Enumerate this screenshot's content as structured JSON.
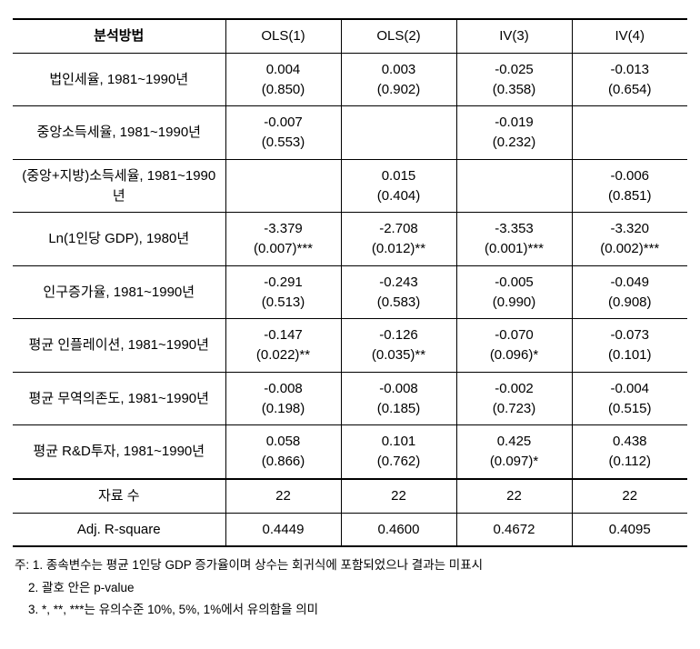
{
  "table": {
    "header": {
      "label": "분석방법",
      "cols": [
        "OLS(1)",
        "OLS(2)",
        "IV(3)",
        "IV(4)"
      ]
    },
    "rows": [
      {
        "label": "법인세율, 1981~1990년",
        "cells": [
          "0.004\n(0.850)",
          "0.003\n(0.902)",
          "-0.025\n(0.358)",
          "-0.013\n(0.654)"
        ]
      },
      {
        "label": "중앙소득세율, 1981~1990년",
        "cells": [
          "-0.007\n(0.553)",
          "",
          "-0.019\n(0.232)",
          ""
        ]
      },
      {
        "label": "(중앙+지방)소득세율, 1981~1990년",
        "cells": [
          "",
          "0.015\n(0.404)",
          "",
          "-0.006\n(0.851)"
        ]
      },
      {
        "label": "Ln(1인당 GDP), 1980년",
        "cells": [
          "-3.379\n(0.007)***",
          "-2.708\n(0.012)**",
          "-3.353\n(0.001)***",
          "-3.320\n(0.002)***"
        ]
      },
      {
        "label": "인구증가율, 1981~1990년",
        "cells": [
          "-0.291\n(0.513)",
          "-0.243\n(0.583)",
          "-0.005\n(0.990)",
          "-0.049\n(0.908)"
        ]
      },
      {
        "label": "평균 인플레이션, 1981~1990년",
        "cells": [
          "-0.147\n(0.022)**",
          "-0.126\n(0.035)**",
          "-0.070\n(0.096)*",
          "-0.073\n(0.101)"
        ]
      },
      {
        "label": "평균 무역의존도, 1981~1990년",
        "cells": [
          "-0.008\n(0.198)",
          "-0.008\n(0.185)",
          "-0.002\n(0.723)",
          "-0.004\n(0.515)"
        ]
      },
      {
        "label": "평균 R&D투자, 1981~1990년",
        "cells": [
          "0.058\n(0.866)",
          "0.101\n(0.762)",
          "0.425\n(0.097)*",
          "0.438\n(0.112)"
        ]
      }
    ],
    "footer_rows": [
      {
        "label": "자료 수",
        "cells": [
          "22",
          "22",
          "22",
          "22"
        ]
      },
      {
        "label": "Adj. R-square",
        "cells": [
          "0.4449",
          "0.4600",
          "0.4672",
          "0.4095"
        ]
      }
    ]
  },
  "notes": {
    "prefix_main": "주: ",
    "prefix_indent": "    ",
    "lines": [
      "1. 종속변수는 평균 1인당 GDP 증가율이며 상수는 회귀식에 포함되었으나 결과는 미표시",
      "2. 괄호 안은 p-value",
      "3. *, **, ***는 유의수준 10%, 5%, 1%에서 유의함을 의미"
    ]
  }
}
